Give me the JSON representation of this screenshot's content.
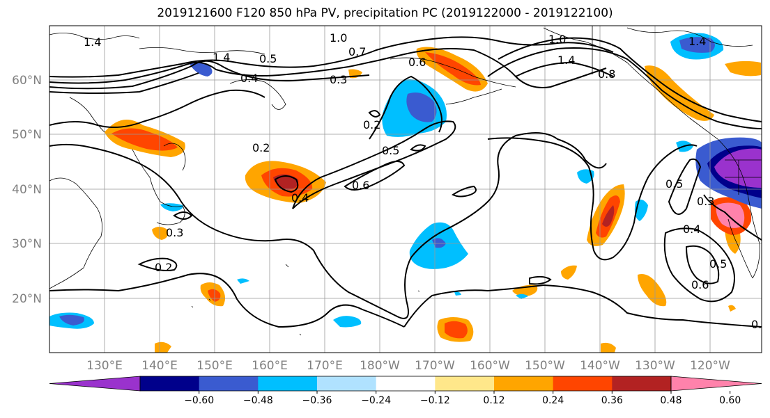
{
  "title": "2019121600 F120 850 hPa PV, precipitation PC (2019122000 - 2019122100)",
  "lon_labels": [
    "130°E",
    "140°E",
    "150°E",
    "160°E",
    "170°E",
    "180°W",
    "170°W",
    "160°W",
    "150°W",
    "140°W",
    "130°W",
    "120°W"
  ],
  "lat_labels": [
    "60°N",
    "50°N",
    "40°N",
    "30°N",
    "20°N"
  ],
  "contour_labels": [
    "1.4",
    "1.4",
    "1.0",
    "1.0",
    "1.4",
    "0.7",
    "0.6",
    "0.8",
    "0.5",
    "0.3",
    "0.4",
    "0.2",
    "0.5",
    "0.6",
    "0.2",
    "0.4",
    "0.3",
    "0.2",
    "0.5",
    "0.3",
    "0.4",
    "0.5",
    "0.6",
    "0.",
    "1.4"
  ],
  "colorbar": {
    "ticks": [
      "−0.60",
      "−0.48",
      "−0.36",
      "−0.24",
      "−0.12",
      "0.12",
      "0.24",
      "0.36",
      "0.48",
      "0.60"
    ],
    "colors": [
      "#9a32cd",
      "#00008b",
      "#3a5bd0",
      "#00bfff",
      "#b0e2ff",
      "#ffffff",
      "#ffe78a",
      "#ffa500",
      "#ff4500",
      "#b22222",
      "#ff82ab"
    ]
  }
}
